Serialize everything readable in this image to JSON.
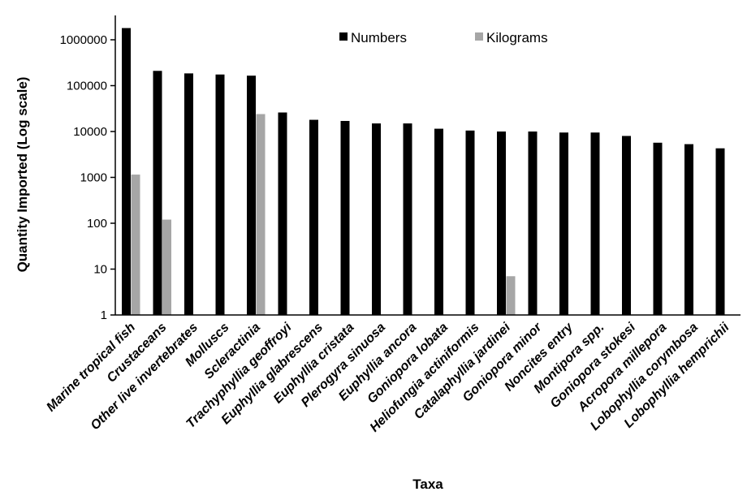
{
  "chart_data": {
    "type": "bar",
    "xlabel": "Taxa",
    "ylabel": "Quantity Imported (Log scale)",
    "yscale": "log",
    "ylim": [
      1,
      1000000
    ],
    "yticks": [
      "1",
      "10",
      "100",
      "1000",
      "10000",
      "100000",
      "1000000"
    ],
    "legend_position": "top",
    "categories": [
      "Marine tropical fish",
      "Crustaceans",
      "Other live invertebrates",
      "Molluscs",
      "Scleractinia",
      "Trachyphyllia geoffroyi",
      "Euphyllia glabrescens",
      "Euphyllia cristata",
      "Plerogyra sinuosa",
      "Euphyllia ancora",
      "Goniopora lobata",
      "Heliofungia actiniformis",
      "Catalaphyllia jardinei",
      "Goniopora minor",
      "Noncites entry",
      "Montipora spp.",
      "Goniopora stokesi",
      "Acropora millepora",
      "Lobophyllia corymbosa",
      "Lobophyllia hemprichii"
    ],
    "series": [
      {
        "name": "Numbers",
        "color": "#000000",
        "values": [
          1800000,
          210000,
          185000,
          175000,
          165000,
          26000,
          18000,
          17000,
          15000,
          15000,
          11500,
          10500,
          10000,
          10000,
          9500,
          9500,
          8000,
          5700,
          5300,
          4300
        ]
      },
      {
        "name": "Kilograms",
        "color": "#a6a6a6",
        "values": [
          1150,
          120,
          null,
          null,
          24000,
          null,
          null,
          null,
          null,
          null,
          null,
          null,
          7,
          null,
          null,
          null,
          null,
          null,
          null,
          null
        ]
      }
    ]
  }
}
